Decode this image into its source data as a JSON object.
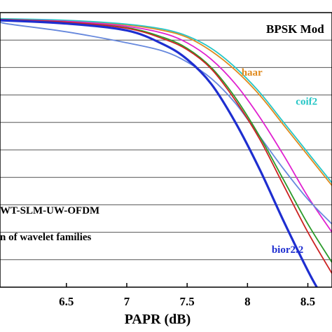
{
  "chart_data": {
    "type": "line",
    "title": "",
    "xlabel": "PAPR (dB)",
    "ylabel": "",
    "xlim": [
      5.95,
      8.7
    ],
    "x_ticks": [
      "6.5",
      "7",
      "7.5",
      "8",
      "8.5"
    ],
    "y_gridlines": 9,
    "grid": "horizontal",
    "annotations": {
      "modulation": "BPSK Mod",
      "scheme": "WT-SLM-UW-OFDM",
      "comparison": "n of wavelet families"
    },
    "series": [
      {
        "name": "haar",
        "color": "#e08a1e",
        "label_at": [
          7.95,
          0.77
        ],
        "x": [
          5.95,
          6.5,
          7.0,
          7.3,
          7.5,
          7.7,
          7.9,
          8.1,
          8.3,
          8.5,
          8.7
        ],
        "y": [
          0.975,
          0.97,
          0.955,
          0.935,
          0.91,
          0.86,
          0.79,
          0.7,
          0.59,
          0.48,
          0.37
        ]
      },
      {
        "name": "coif2",
        "color": "#25c6c6",
        "label_at": [
          8.4,
          0.665
        ],
        "x": [
          5.95,
          6.5,
          7.0,
          7.3,
          7.5,
          7.7,
          7.9,
          8.1,
          8.3,
          8.5,
          8.7
        ],
        "y": [
          0.978,
          0.972,
          0.958,
          0.94,
          0.915,
          0.87,
          0.8,
          0.71,
          0.6,
          0.49,
          0.38
        ]
      },
      {
        "name": "",
        "color": "#e020d0",
        "x": [
          5.95,
          6.5,
          7.0,
          7.3,
          7.5,
          7.7,
          7.9,
          8.1,
          8.3,
          8.5,
          8.7
        ],
        "y": [
          0.975,
          0.968,
          0.95,
          0.925,
          0.89,
          0.83,
          0.74,
          0.62,
          0.48,
          0.33,
          0.2
        ]
      },
      {
        "name": "",
        "color": "#6688dd",
        "x": [
          5.95,
          6.0,
          6.5,
          7.0,
          7.3,
          7.5,
          7.7,
          7.9,
          8.1,
          8.3,
          8.5,
          8.7
        ],
        "y": [
          0.97,
          0.96,
          0.93,
          0.89,
          0.86,
          0.82,
          0.76,
          0.67,
          0.55,
          0.43,
          0.32,
          0.23
        ]
      },
      {
        "name": "",
        "color": "#2a9a2a",
        "x": [
          5.95,
          6.5,
          7.0,
          7.3,
          7.5,
          7.7,
          7.9,
          8.1,
          8.3,
          8.5,
          8.7
        ],
        "y": [
          0.975,
          0.965,
          0.945,
          0.91,
          0.87,
          0.8,
          0.69,
          0.55,
          0.39,
          0.23,
          0.09
        ]
      },
      {
        "name": "",
        "color": "#cc2222",
        "x": [
          5.95,
          6.5,
          7.0,
          7.3,
          7.5,
          7.7,
          7.9,
          8.1,
          8.3,
          8.5,
          8.7
        ],
        "y": [
          0.975,
          0.965,
          0.943,
          0.905,
          0.865,
          0.795,
          0.68,
          0.54,
          0.37,
          0.2,
          0.05
        ]
      },
      {
        "name": "bior2.2",
        "color": "#1e2ed0",
        "label_at": [
          8.2,
          0.125
        ],
        "x": [
          5.95,
          6.5,
          7.0,
          7.3,
          7.5,
          7.7,
          7.9,
          8.1,
          8.3,
          8.5,
          8.6
        ],
        "y": [
          0.972,
          0.96,
          0.935,
          0.885,
          0.83,
          0.74,
          0.6,
          0.43,
          0.24,
          0.06,
          -0.02
        ]
      }
    ]
  }
}
